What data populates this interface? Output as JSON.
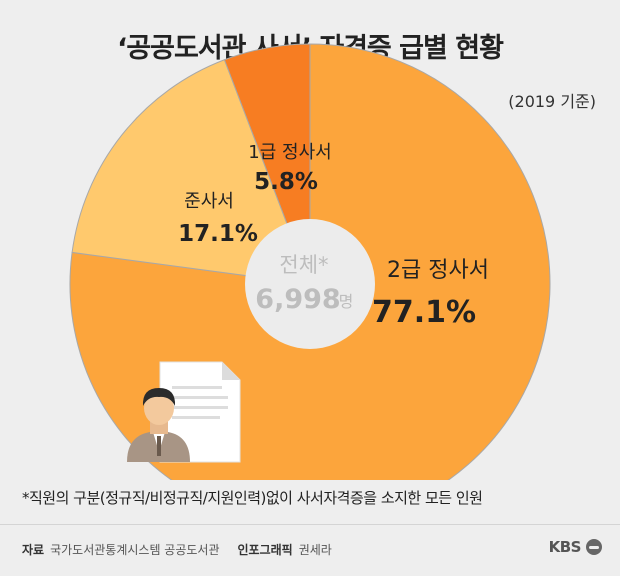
{
  "title": "‘공공도서관 사서’ 자격증 급별 현황",
  "basis": "(2019 기준)",
  "chart_data": {
    "type": "pie",
    "title": "‘공공도서관 사서’ 자격증 급별 현황",
    "slices": [
      {
        "label": "2급 정사서",
        "value": 77.1,
        "value_label": "77.1%",
        "color": "#fca53c"
      },
      {
        "label": "준사서",
        "value": 17.1,
        "value_label": "17.1%",
        "color": "#ffc96d"
      },
      {
        "label": "1급 정사서",
        "value": 5.8,
        "value_label": "5.8%",
        "color": "#f77d22"
      }
    ],
    "center_label": "전체*",
    "center_value": "6,998",
    "center_unit": "명"
  },
  "footnote": "*직원의 구분(정규직/비정규직/지원인력)없이 사서자격증을 소지한 모든 인원",
  "source": {
    "label": "자료",
    "text": "국가도서관통계시스템 공공도서관",
    "credit_label": "인포그래픽",
    "credit": "권세라"
  },
  "brand": "KBS",
  "icons": {
    "person": "person-icon",
    "document": "document-icon",
    "logo": "kbs-logo-icon"
  }
}
